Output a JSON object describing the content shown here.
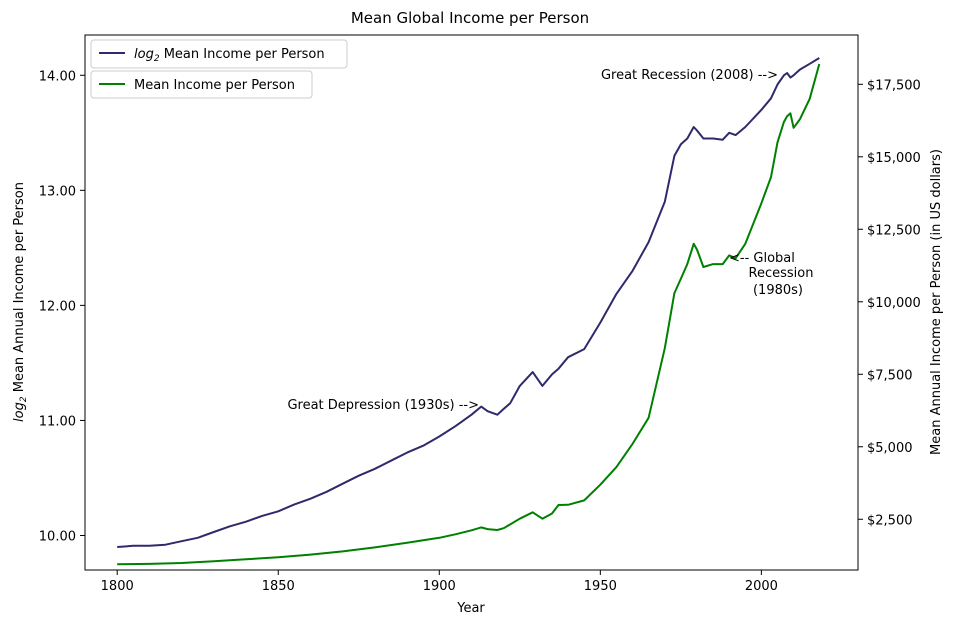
{
  "chart_data": {
    "type": "line",
    "title": "Mean Global Income per Person",
    "xlabel": "Year",
    "ylabel_left_prefix": "log",
    "ylabel_left_sub": "2",
    "ylabel_left_rest": " Mean Annual Income per Person",
    "ylabel_right": "Mean Annual Income per Person (in US dollars)",
    "xlim": [
      1790,
      2030
    ],
    "ylim_left": [
      9.7,
      14.35
    ],
    "ylim_right": [
      750,
      19200
    ],
    "x_ticks": [
      1800,
      1850,
      1900,
      1950,
      2000
    ],
    "y_left_ticks": [
      "10.00",
      "11.00",
      "12.00",
      "13.00",
      "14.00"
    ],
    "y_right_ticks": [
      "$2,500",
      "$5,000",
      "$7,500",
      "$10,000",
      "$12,500",
      "$15,000",
      "$17,500"
    ],
    "colors": {
      "log_series": "#2e2a6b",
      "income_series": "#008000"
    },
    "legend": [
      {
        "prefix": "log",
        "sub": "2",
        "rest": " Mean Income per Person",
        "color": "#2e2a6b"
      },
      {
        "label": "Mean Income per Person",
        "color": "#008000"
      }
    ],
    "legend_placement": "top-left",
    "series": [
      {
        "name": "log2 Mean Income per Person",
        "axis": "left",
        "x": [
          1800,
          1805,
          1810,
          1815,
          1820,
          1825,
          1830,
          1835,
          1840,
          1845,
          1850,
          1855,
          1860,
          1865,
          1870,
          1875,
          1880,
          1885,
          1890,
          1895,
          1900,
          1905,
          1910,
          1913,
          1915,
          1918,
          1920,
          1922,
          1925,
          1929,
          1932,
          1935,
          1937,
          1940,
          1945,
          1950,
          1955,
          1960,
          1965,
          1970,
          1973,
          1975,
          1977,
          1979,
          1980,
          1982,
          1985,
          1988,
          1990,
          1992,
          1995,
          2000,
          2003,
          2005,
          2007,
          2008,
          2009,
          2010,
          2012,
          2015,
          2018
        ],
        "y": [
          9.9,
          9.91,
          9.91,
          9.92,
          9.95,
          9.98,
          10.03,
          10.08,
          10.12,
          10.17,
          10.21,
          10.27,
          10.32,
          10.38,
          10.45,
          10.52,
          10.58,
          10.65,
          10.72,
          10.78,
          10.86,
          10.95,
          11.05,
          11.12,
          11.08,
          11.05,
          11.1,
          11.15,
          11.3,
          11.42,
          11.3,
          11.4,
          11.45,
          11.55,
          11.62,
          11.85,
          12.1,
          12.3,
          12.55,
          12.9,
          13.3,
          13.4,
          13.45,
          13.55,
          13.52,
          13.45,
          13.45,
          13.44,
          13.5,
          13.48,
          13.55,
          13.7,
          13.8,
          13.92,
          14.0,
          14.02,
          13.98,
          14.0,
          14.05,
          14.1,
          14.15
        ]
      },
      {
        "name": "Mean Income per Person",
        "axis": "right",
        "x": [
          1800,
          1810,
          1820,
          1830,
          1840,
          1850,
          1860,
          1870,
          1880,
          1890,
          1900,
          1905,
          1910,
          1913,
          1915,
          1918,
          1920,
          1925,
          1929,
          1932,
          1935,
          1937,
          1940,
          1945,
          1950,
          1955,
          1960,
          1965,
          1970,
          1973,
          1975,
          1977,
          1979,
          1980,
          1982,
          1985,
          1988,
          1990,
          1992,
          1995,
          2000,
          2003,
          2005,
          2007,
          2008,
          2009,
          2010,
          2012,
          2015,
          2018
        ],
        "y": [
          950,
          960,
          990,
          1050,
          1120,
          1190,
          1280,
          1390,
          1530,
          1690,
          1860,
          1980,
          2120,
          2220,
          2160,
          2130,
          2190,
          2520,
          2740,
          2520,
          2700,
          2990,
          3000,
          3150,
          3690,
          4300,
          5100,
          6000,
          8400,
          10300,
          10800,
          11300,
          12000,
          11800,
          11200,
          11300,
          11300,
          11600,
          11500,
          12000,
          13400,
          14300,
          15500,
          16200,
          16400,
          16500,
          16000,
          16300,
          17000,
          18200
        ]
      }
    ],
    "annotations": [
      "Great Recession (2008) -->",
      "<-- Global",
      "Recession",
      "(1980s)",
      "Great Depression (1930s) -->"
    ]
  }
}
